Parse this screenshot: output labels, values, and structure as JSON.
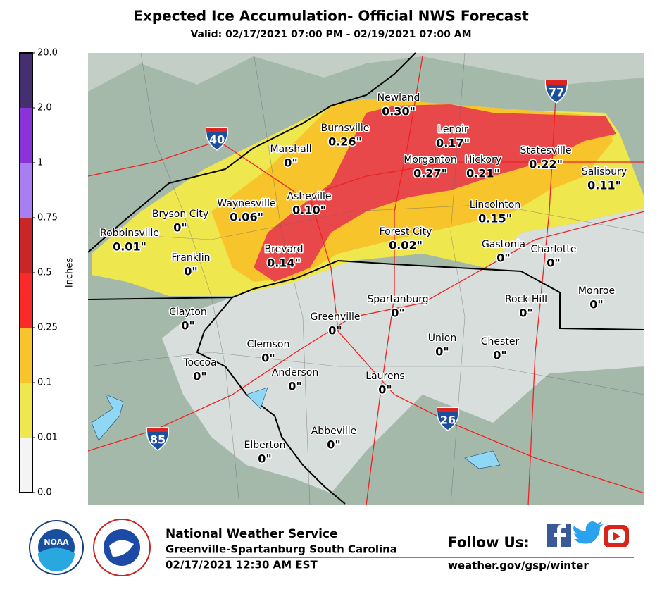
{
  "header": {
    "title": "Expected Ice Accumulation- Official NWS Forecast",
    "subtitle": "Valid: 02/17/2021 07:00 PM - 02/19/2021 07:00 AM"
  },
  "legend": {
    "label": "Inches",
    "ticks": [
      {
        "value": 20,
        "label": "20.0"
      },
      {
        "value": 2,
        "label": "2.0"
      },
      1,
      0.75,
      0.5,
      0.25,
      0.1,
      0.01,
      {
        "value": 0,
        "label": "0.0"
      }
    ],
    "colors": [
      "#45306f",
      "#8a33d8",
      "#a97ef2",
      "#c92628",
      "#fb2a2a",
      "#f7c42b",
      "#efe74e",
      "#f4f4f4"
    ]
  },
  "map": {
    "interstates": [
      "40",
      "77",
      "85",
      "26"
    ],
    "cities": [
      {
        "name": "Newland",
        "value": "0.30\""
      },
      {
        "name": "Burnsville",
        "value": "0.26\""
      },
      {
        "name": "Lenoir",
        "value": "0.17\""
      },
      {
        "name": "Marshall",
        "value": "0\""
      },
      {
        "name": "Statesville",
        "value": "0.22\""
      },
      {
        "name": "Morganton",
        "value": "0.27\""
      },
      {
        "name": "Hickory",
        "value": "0.21\""
      },
      {
        "name": "Salisbury",
        "value": "0.11\""
      },
      {
        "name": "Asheville",
        "value": "0.10\""
      },
      {
        "name": "Waynesville",
        "value": "0.06\""
      },
      {
        "name": "Lincolnton",
        "value": "0.15\""
      },
      {
        "name": "Bryson City",
        "value": "0\""
      },
      {
        "name": "Robbinsville",
        "value": "0.01\""
      },
      {
        "name": "Forest City",
        "value": "0.02\""
      },
      {
        "name": "Gastonia",
        "value": "0\""
      },
      {
        "name": "Charlotte",
        "value": "0\""
      },
      {
        "name": "Brevard",
        "value": "0.14\""
      },
      {
        "name": "Franklin",
        "value": "0\""
      },
      {
        "name": "Monroe",
        "value": "0\""
      },
      {
        "name": "Spartanburg",
        "value": "0\""
      },
      {
        "name": "Rock Hill",
        "value": "0\""
      },
      {
        "name": "Clayton",
        "value": "0\""
      },
      {
        "name": "Greenville",
        "value": "0\""
      },
      {
        "name": "Union",
        "value": "0\""
      },
      {
        "name": "Chester",
        "value": "0\""
      },
      {
        "name": "Clemson",
        "value": "0\""
      },
      {
        "name": "Toccoa",
        "value": "0\""
      },
      {
        "name": "Anderson",
        "value": "0\""
      },
      {
        "name": "Laurens",
        "value": "0\""
      },
      {
        "name": "Abbeville",
        "value": "0\""
      },
      {
        "name": "Elberton",
        "value": "0\""
      }
    ]
  },
  "footer": {
    "logo": "NOAA",
    "office": "National Weather Service",
    "location": "Greenville-Spartanburg South Carolina",
    "issued": "02/17/2021 12:30 AM EST",
    "follow": "Follow Us:",
    "url": "weather.gov/gsp/winter"
  }
}
